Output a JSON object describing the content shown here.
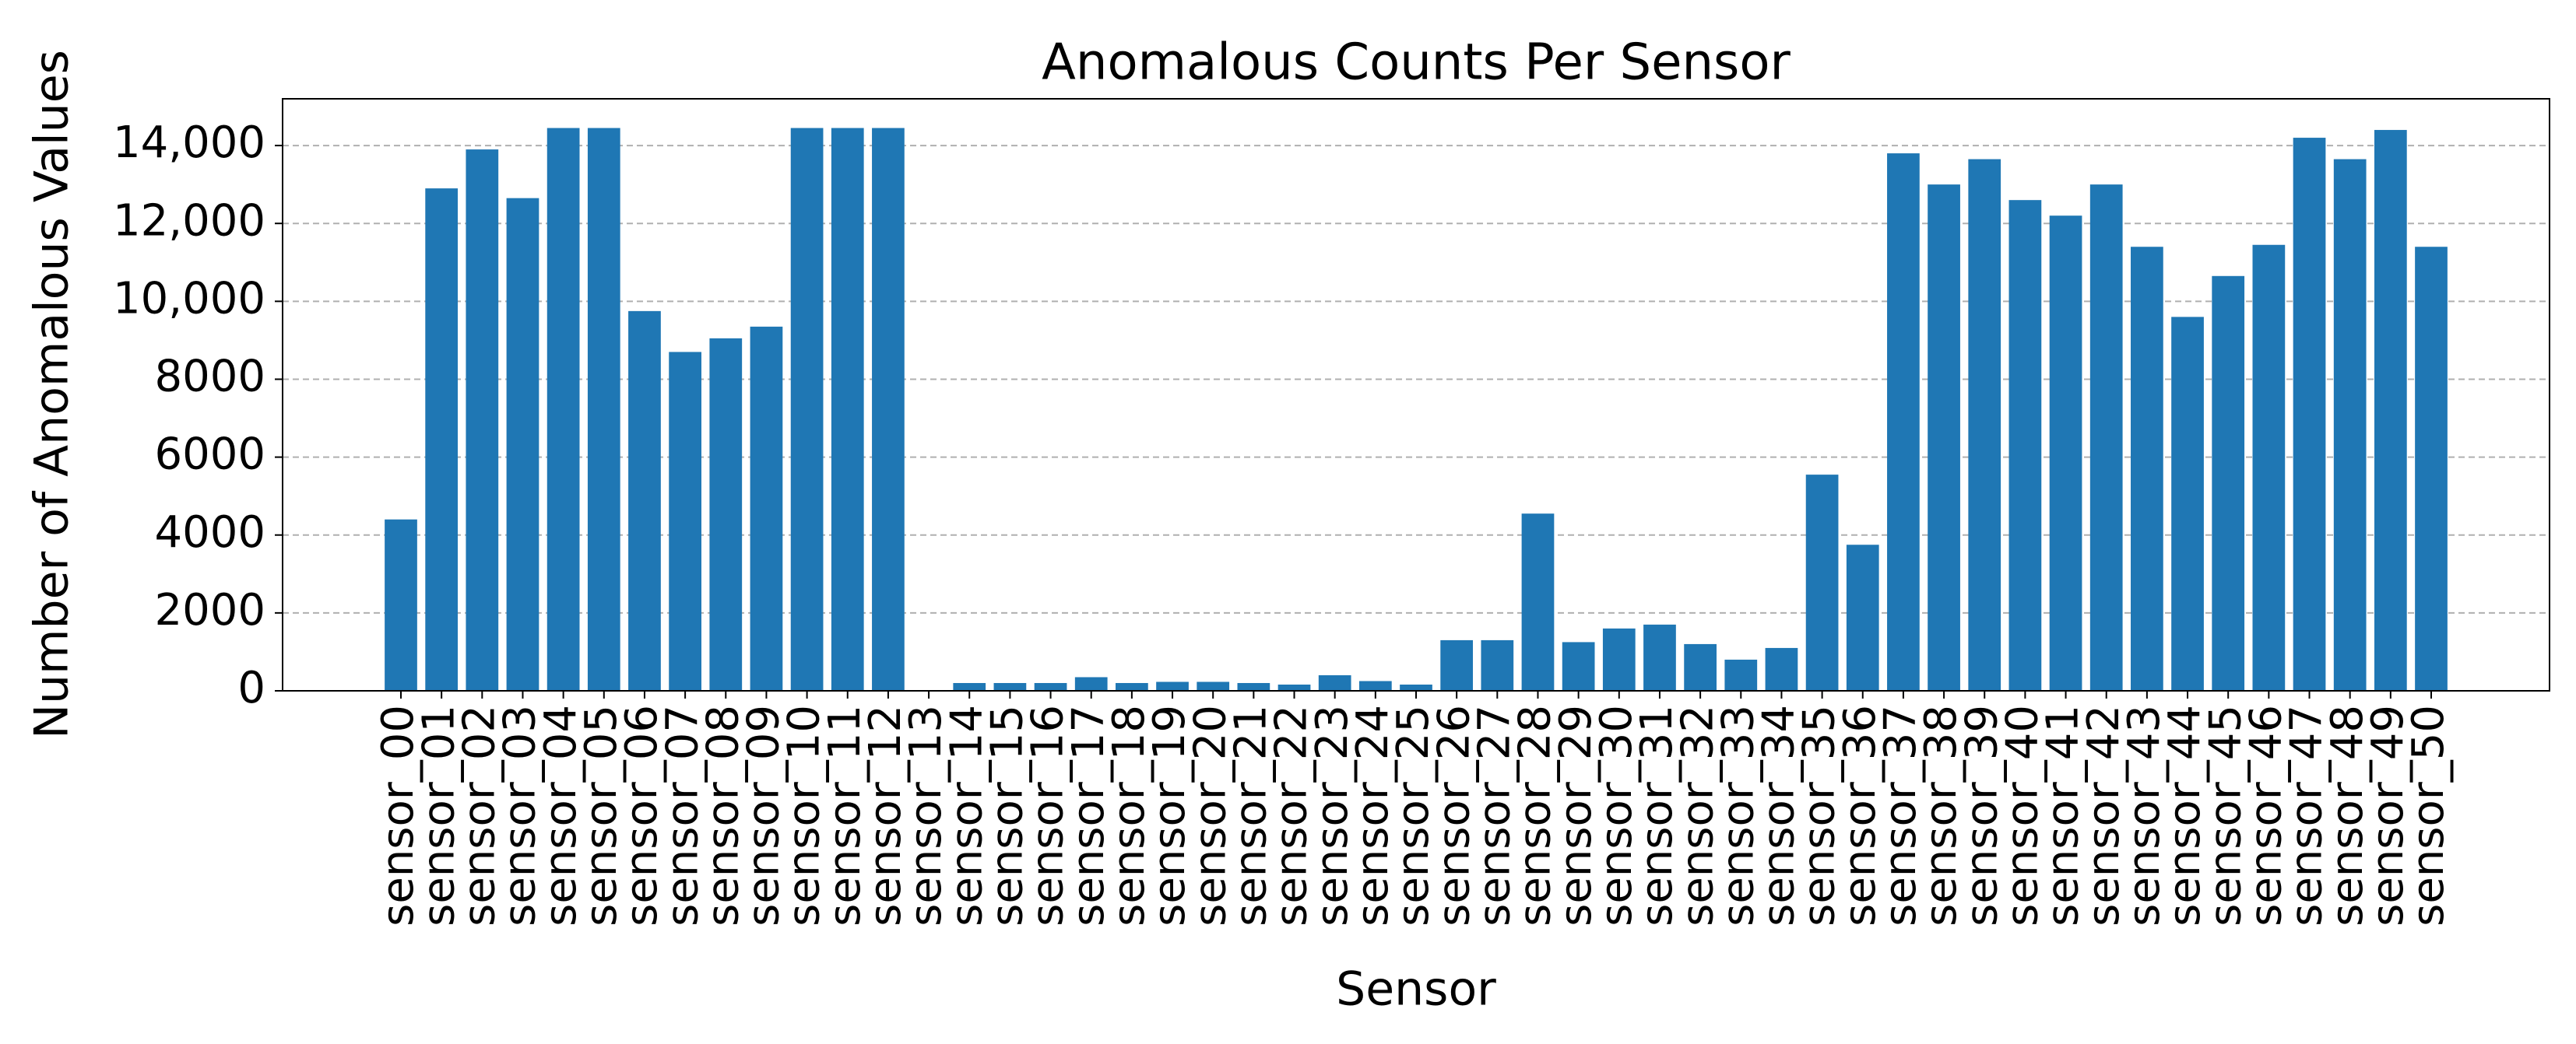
{
  "chart_data": {
    "type": "bar",
    "title": "Anomalous Counts Per Sensor",
    "xlabel": "Sensor",
    "ylabel": "Number of Anomalous Values",
    "categories": [
      "sensor_00",
      "sensor_01",
      "sensor_02",
      "sensor_03",
      "sensor_04",
      "sensor_05",
      "sensor_06",
      "sensor_07",
      "sensor_08",
      "sensor_09",
      "sensor_10",
      "sensor_11",
      "sensor_12",
      "sensor_13",
      "sensor_14",
      "sensor_15",
      "sensor_16",
      "sensor_17",
      "sensor_18",
      "sensor_19",
      "sensor_20",
      "sensor_21",
      "sensor_22",
      "sensor_23",
      "sensor_24",
      "sensor_25",
      "sensor_26",
      "sensor_27",
      "sensor_28",
      "sensor_29",
      "sensor_30",
      "sensor_31",
      "sensor_32",
      "sensor_33",
      "sensor_34",
      "sensor_35",
      "sensor_36",
      "sensor_37",
      "sensor_38",
      "sensor_39",
      "sensor_40",
      "sensor_41",
      "sensor_42",
      "sensor_43",
      "sensor_44",
      "sensor_45",
      "sensor_46",
      "sensor_47",
      "sensor_48",
      "sensor_49",
      "sensor_50"
    ],
    "values": [
      4400,
      12900,
      13900,
      12650,
      14450,
      14450,
      9750,
      8700,
      9050,
      9350,
      14450,
      14450,
      14450,
      0,
      200,
      200,
      200,
      350,
      200,
      230,
      230,
      200,
      160,
      400,
      250,
      160,
      1300,
      1300,
      4550,
      1250,
      1600,
      1700,
      1200,
      800,
      1100,
      5550,
      3750,
      13800,
      13000,
      13650,
      12600,
      12200,
      13000,
      11400,
      9600,
      10650,
      11450,
      14200,
      13650,
      14400,
      11400
    ],
    "color": "#1f77b4",
    "ylim": [
      0,
      15200
    ],
    "yticks": [
      0,
      2000,
      4000,
      6000,
      8000,
      {
        "value": 10000,
        "label": "10,000"
      },
      {
        "value": 12000,
        "label": "12,000"
      },
      {
        "value": 14000,
        "label": "14,000"
      }
    ],
    "grid": true
  }
}
